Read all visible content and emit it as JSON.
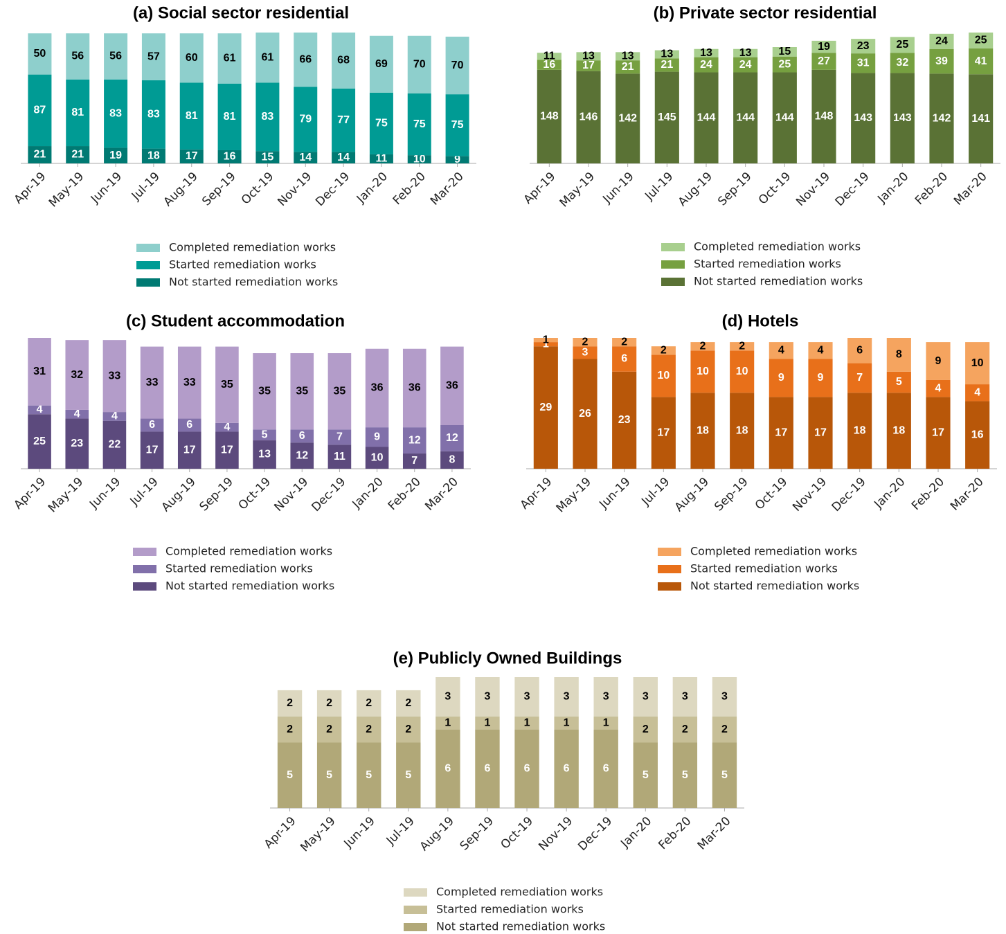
{
  "chart_data": [
    {
      "type": "bar",
      "stacked": true,
      "title": "(a) Social sector residential",
      "categories": [
        "Apr-19",
        "May-19",
        "Jun-19",
        "Jul-19",
        "Aug-19",
        "Sep-19",
        "Oct-19",
        "Nov-19",
        "Dec-19",
        "Jan-20",
        "Feb-20",
        "Mar-20"
      ],
      "series": [
        {
          "name": "Not started remediation works",
          "color": "#007a73",
          "label_color": "#ffffff",
          "values": [
            21,
            21,
            19,
            18,
            17,
            16,
            15,
            14,
            14,
            11,
            10,
            9
          ]
        },
        {
          "name": "Started remediation works",
          "color": "#009b94",
          "label_color": "#ffffff",
          "values": [
            87,
            81,
            83,
            83,
            81,
            81,
            83,
            79,
            77,
            75,
            75,
            75
          ]
        },
        {
          "name": "Completed remediation works",
          "color": "#8ecfcc",
          "label_color": "#000000",
          "values": [
            50,
            56,
            56,
            57,
            60,
            61,
            61,
            66,
            68,
            69,
            70,
            70
          ]
        }
      ]
    },
    {
      "type": "bar",
      "stacked": true,
      "title": "(b) Private sector residential",
      "categories": [
        "Apr-19",
        "May-19",
        "Jun-19",
        "Jul-19",
        "Aug-19",
        "Sep-19",
        "Oct-19",
        "Nov-19",
        "Dec-19",
        "Jan-20",
        "Feb-20",
        "Mar-20"
      ],
      "series": [
        {
          "name": "Not started remediation works",
          "color": "#5a7235",
          "label_color": "#ffffff",
          "values": [
            148,
            146,
            142,
            145,
            144,
            144,
            144,
            148,
            143,
            143,
            142,
            141
          ]
        },
        {
          "name": "Started remediation works",
          "color": "#76a040",
          "label_color": "#ffffff",
          "values": [
            16,
            17,
            21,
            21,
            24,
            24,
            25,
            27,
            31,
            32,
            39,
            41
          ]
        },
        {
          "name": "Completed remediation works",
          "color": "#a8cf8e",
          "label_color": "#000000",
          "values": [
            11,
            13,
            13,
            13,
            13,
            13,
            15,
            19,
            23,
            25,
            24,
            25
          ]
        }
      ]
    },
    {
      "type": "bar",
      "stacked": true,
      "title": "(c) Student accommodation",
      "categories": [
        "Apr-19",
        "May-19",
        "Jun-19",
        "Jul-19",
        "Aug-19",
        "Sep-19",
        "Oct-19",
        "Nov-19",
        "Dec-19",
        "Jan-20",
        "Feb-20",
        "Mar-20"
      ],
      "series": [
        {
          "name": "Not started remediation works",
          "color": "#5c4a7d",
          "label_color": "#ffffff",
          "values": [
            25,
            23,
            22,
            17,
            17,
            17,
            13,
            12,
            11,
            10,
            7,
            8
          ]
        },
        {
          "name": "Started remediation works",
          "color": "#8170aa",
          "label_color": "#ffffff",
          "values": [
            4,
            4,
            4,
            6,
            6,
            4,
            5,
            6,
            7,
            9,
            12,
            12
          ]
        },
        {
          "name": "Completed remediation works",
          "color": "#b39cc9",
          "label_color": "#000000",
          "values": [
            31,
            32,
            33,
            33,
            33,
            35,
            35,
            35,
            35,
            36,
            36,
            36
          ]
        }
      ]
    },
    {
      "type": "bar",
      "stacked": true,
      "title": "(d) Hotels",
      "categories": [
        "Apr-19",
        "May-19",
        "Jun-19",
        "Jul-19",
        "Aug-19",
        "Sep-19",
        "Oct-19",
        "Nov-19",
        "Dec-19",
        "Jan-20",
        "Feb-20",
        "Mar-20"
      ],
      "series": [
        {
          "name": "Not started remediation works",
          "color": "#b85709",
          "label_color": "#ffffff",
          "values": [
            29,
            26,
            23,
            17,
            18,
            18,
            17,
            17,
            18,
            18,
            17,
            16
          ]
        },
        {
          "name": "Started remediation works",
          "color": "#e8701a",
          "label_color": "#ffffff",
          "values": [
            1,
            3,
            6,
            10,
            10,
            10,
            9,
            9,
            7,
            5,
            4,
            4
          ]
        },
        {
          "name": "Completed remediation works",
          "color": "#f5a45f",
          "label_color": "#000000",
          "values": [
            1,
            2,
            2,
            2,
            2,
            2,
            4,
            4,
            6,
            8,
            9,
            10
          ]
        }
      ]
    },
    {
      "type": "bar",
      "stacked": true,
      "title": "(e) Publicly Owned Buildings",
      "categories": [
        "Apr-19",
        "May-19",
        "Jun-19",
        "Jul-19",
        "Aug-19",
        "Sep-19",
        "Oct-19",
        "Nov-19",
        "Dec-19",
        "Jan-20",
        "Feb-20",
        "Mar-20"
      ],
      "series": [
        {
          "name": "Not started remediation works",
          "color": "#b1a878",
          "label_color": "#ffffff",
          "values": [
            5,
            5,
            5,
            5,
            6,
            6,
            6,
            6,
            6,
            5,
            5,
            5
          ]
        },
        {
          "name": "Started remediation works",
          "color": "#c7bf97",
          "label_color": "#000000",
          "values": [
            2,
            2,
            2,
            2,
            1,
            1,
            1,
            1,
            1,
            2,
            2,
            2
          ]
        },
        {
          "name": "Completed remediation works",
          "color": "#ddd8c0",
          "label_color": "#000000",
          "values": [
            2,
            2,
            2,
            2,
            3,
            3,
            3,
            3,
            3,
            3,
            3,
            3
          ]
        }
      ]
    }
  ]
}
